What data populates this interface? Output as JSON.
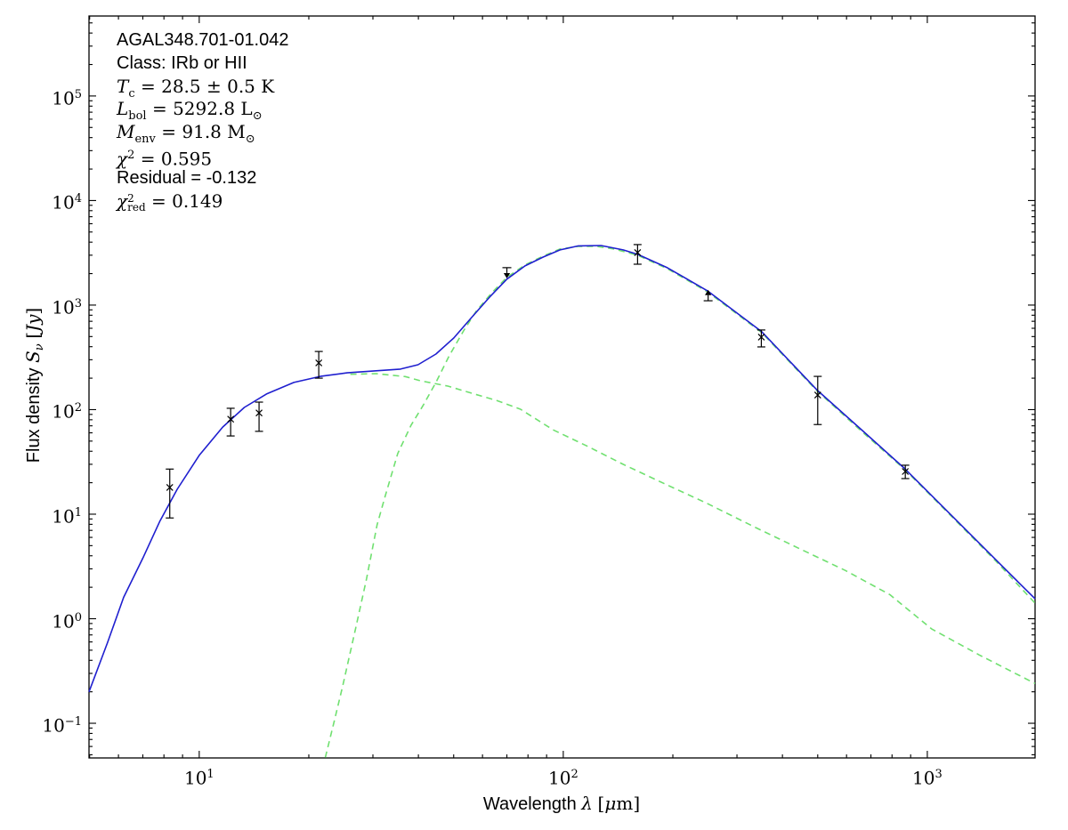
{
  "figure": {
    "background": "#ffffff",
    "info_box": {
      "lines": [
        {
          "font": "sans",
          "name": "source-name",
          "parts": [
            {
              "t": "txt",
              "v": "AGAL348.701-01.042"
            }
          ]
        },
        {
          "font": "sans",
          "name": "class-line",
          "parts": [
            {
              "t": "txt",
              "v": "Class: IRb or HII"
            }
          ]
        },
        {
          "font": "math",
          "name": "temperature-line",
          "parts": [
            {
              "t": "var",
              "v": "T"
            },
            {
              "t": "sub",
              "v": "c"
            },
            {
              "t": "txt",
              "v": " = 28.5 ± 0.5 K"
            }
          ]
        },
        {
          "font": "math",
          "name": "luminosity-line",
          "parts": [
            {
              "t": "var",
              "v": "L"
            },
            {
              "t": "sub",
              "v": "bol"
            },
            {
              "t": "txt",
              "v": " = 5292.8 L"
            },
            {
              "t": "sub",
              "v": "⊙"
            }
          ]
        },
        {
          "font": "math",
          "name": "mass-line",
          "parts": [
            {
              "t": "var",
              "v": "M"
            },
            {
              "t": "sub",
              "v": "env"
            },
            {
              "t": "txt",
              "v": " = 91.8 M"
            },
            {
              "t": "sub",
              "v": "⊙"
            }
          ]
        },
        {
          "font": "math",
          "name": "chi2-line",
          "parts": [
            {
              "t": "var",
              "v": "χ"
            },
            {
              "t": "sup",
              "v": "2"
            },
            {
              "t": "txt",
              "v": " = 0.595"
            }
          ]
        },
        {
          "font": "sans",
          "name": "residual-line",
          "parts": [
            {
              "t": "txt",
              "v": "Residual = -0.132"
            }
          ]
        },
        {
          "font": "math",
          "name": "chi2red-line",
          "parts": [
            {
              "t": "var",
              "v": "χ"
            },
            {
              "t": "supsub",
              "sup": "2",
              "sub": "red"
            },
            {
              "t": "txt",
              "v": " = 0.149"
            }
          ]
        }
      ]
    },
    "x_axis": {
      "tick_exponents": [
        1,
        2,
        3
      ],
      "label_parts": [
        {
          "c": "sans",
          "v": "Wavelength "
        },
        {
          "c": "it",
          "v": "λ"
        },
        {
          "c": "sans",
          "v": " "
        },
        {
          "c": "serif",
          "v": "["
        },
        {
          "c": "it",
          "v": "μ"
        },
        {
          "c": "serif",
          "v": "m]"
        }
      ]
    },
    "y_axis": {
      "tick_exponents": [
        -1,
        0,
        1,
        2,
        3,
        4,
        5
      ],
      "label_parts": [
        {
          "c": "sans",
          "v": "Flux density "
        },
        {
          "c": "it",
          "v": "S"
        },
        {
          "c": "itsub",
          "v": "ν"
        },
        {
          "c": "sans",
          "v": " "
        },
        {
          "c": "serif",
          "v": "["
        },
        {
          "c": "it",
          "v": "Jy"
        },
        {
          "c": "serif",
          "v": "]"
        }
      ]
    }
  },
  "chart_data": {
    "type": "line",
    "title": "",
    "xlabel": "Wavelength λ [μm]",
    "ylabel": "Flux density Sν [Jy]",
    "xscale": "log",
    "yscale": "log",
    "xlim": [
      4.98,
      1977
    ],
    "ylim": [
      0.0466,
      582000
    ],
    "grid": false,
    "legend": null,
    "colors": {
      "total_fit": "#1f1fcf",
      "components": "#70e070",
      "data": "#000000"
    },
    "annotations": [
      "AGAL348.701-01.042",
      "Class: IRb or HII",
      "T_c = 28.5 ± 0.5 K",
      "L_bol = 5292.8 L⊙",
      "M_env = 91.8 M⊙",
      "χ² = 0.595",
      "Residual = -0.132",
      "χ²_red = 0.149"
    ],
    "series": [
      {
        "name": "cold-envelope-component",
        "style": "dashed",
        "color": "#70e070",
        "points": [
          [
            22.2,
            0.047
          ],
          [
            23.5,
            0.105
          ],
          [
            24.8,
            0.23
          ],
          [
            26.9,
            0.81
          ],
          [
            28.8,
            2.4
          ],
          [
            30.8,
            7.9
          ],
          [
            32.4,
            14.8
          ],
          [
            35.1,
            38
          ],
          [
            38.2,
            71
          ],
          [
            41.3,
            111
          ],
          [
            44.7,
            182
          ],
          [
            48.6,
            327
          ],
          [
            53.2,
            566
          ],
          [
            57.6,
            871
          ],
          [
            63.4,
            1290
          ],
          [
            70,
            1840
          ],
          [
            78.5,
            2420
          ],
          [
            88,
            2940
          ],
          [
            98,
            3440
          ],
          [
            110,
            3650
          ],
          [
            123,
            3650
          ],
          [
            138,
            3440
          ],
          [
            160,
            3000
          ],
          [
            193,
            2230
          ],
          [
            249,
            1340
          ],
          [
            351,
            545
          ],
          [
            497,
            152
          ],
          [
            667,
            60
          ],
          [
            863,
            27.2
          ],
          [
            1170,
            9.4
          ],
          [
            1550,
            3.5
          ],
          [
            1977,
            1.41
          ]
        ]
      },
      {
        "name": "warm-compact-component",
        "style": "dashed",
        "color": "#70e070",
        "points": [
          [
            26,
            218
          ],
          [
            30.6,
            221
          ],
          [
            36.8,
            207
          ],
          [
            40.5,
            189
          ],
          [
            48.2,
            168
          ],
          [
            57,
            141
          ],
          [
            65.3,
            123
          ],
          [
            76.3,
            101
          ],
          [
            93.8,
            64
          ],
          [
            116,
            45
          ],
          [
            146,
            30
          ],
          [
            193,
            19
          ],
          [
            247,
            12.8
          ],
          [
            339,
            7.4
          ],
          [
            450,
            4.6
          ],
          [
            595,
            2.9
          ],
          [
            789,
            1.7
          ],
          [
            1027,
            0.8
          ],
          [
            1390,
            0.45
          ],
          [
            1977,
            0.24
          ]
        ]
      },
      {
        "name": "total-fit",
        "style": "solid",
        "color": "#1f1fcf",
        "points": [
          [
            4.98,
            0.2
          ],
          [
            5.6,
            0.59
          ],
          [
            6.2,
            1.6
          ],
          [
            7.0,
            3.8
          ],
          [
            7.8,
            8.6
          ],
          [
            8.7,
            17.3
          ],
          [
            10,
            36.5
          ],
          [
            11.6,
            68
          ],
          [
            13.3,
            105
          ],
          [
            15.3,
            141
          ],
          [
            18.2,
            182
          ],
          [
            21.5,
            208
          ],
          [
            25.5,
            225
          ],
          [
            30,
            234
          ],
          [
            35.7,
            244
          ],
          [
            39.9,
            269
          ],
          [
            44.7,
            340
          ],
          [
            50,
            484
          ],
          [
            56,
            760
          ],
          [
            62.7,
            1190
          ],
          [
            70,
            1770
          ],
          [
            78.5,
            2370
          ],
          [
            88,
            2880
          ],
          [
            98,
            3370
          ],
          [
            110,
            3680
          ],
          [
            127,
            3715
          ],
          [
            146,
            3370
          ],
          [
            160,
            3060
          ],
          [
            193,
            2280
          ],
          [
            249,
            1370
          ],
          [
            351,
            556
          ],
          [
            497,
            155
          ],
          [
            667,
            62
          ],
          [
            863,
            27.7
          ],
          [
            1170,
            9.6
          ],
          [
            1550,
            3.6
          ],
          [
            1977,
            1.55
          ]
        ]
      }
    ],
    "data_points": [
      {
        "wavelength": 8.3,
        "flux": 18,
        "flux_hi": 27,
        "flux_lo": 9.2,
        "marker": "x"
      },
      {
        "wavelength": 12.2,
        "flux": 81,
        "flux_hi": 103,
        "flux_lo": 56,
        "marker": "x"
      },
      {
        "wavelength": 14.6,
        "flux": 93,
        "flux_hi": 118,
        "flux_lo": 62,
        "marker": "x"
      },
      {
        "wavelength": 21.3,
        "flux": 280,
        "flux_hi": 360,
        "flux_lo": 200,
        "marker": "x"
      },
      {
        "wavelength": 70,
        "flux": 2280,
        "limit": "upper",
        "arrow_to": 1800
      },
      {
        "wavelength": 160,
        "flux": 3180,
        "flux_hi": 3790,
        "flux_lo": 2460,
        "marker": "x"
      },
      {
        "wavelength": 250,
        "flux": 1100,
        "limit": "lower",
        "arrow_to": 1400
      },
      {
        "wavelength": 350,
        "flux": 494,
        "flux_hi": 578,
        "flux_lo": 398,
        "marker": "x"
      },
      {
        "wavelength": 500,
        "flux": 138,
        "flux_hi": 208,
        "flux_lo": 72,
        "marker": "x"
      },
      {
        "wavelength": 870,
        "flux": 25.6,
        "flux_hi": 29.4,
        "flux_lo": 21.9,
        "marker": "x"
      }
    ]
  }
}
